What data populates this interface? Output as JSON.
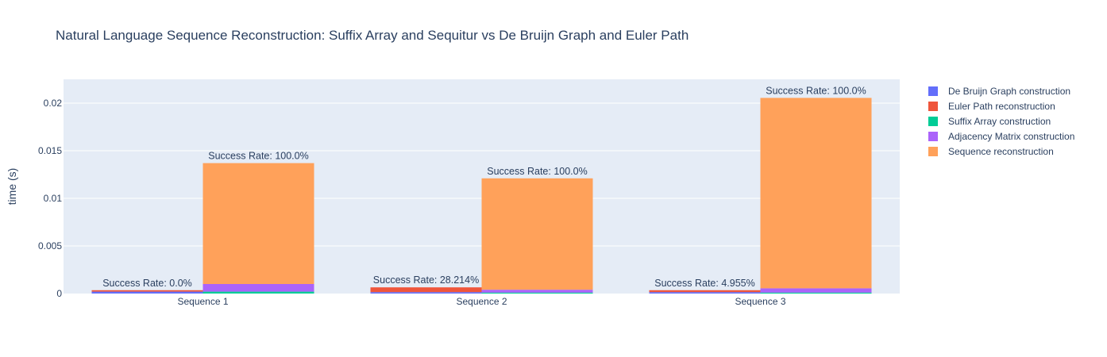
{
  "chart_data": {
    "type": "bar",
    "barmode": "stacked groups",
    "title": "Natural Language Sequence Reconstruction: Suffix Array and Sequitur vs De Bruijn Graph and Euler Path",
    "ylabel": "time (s)",
    "xlabel": "",
    "ylim": [
      0,
      0.0225
    ],
    "yticks": [
      0,
      0.005,
      0.01,
      0.015,
      0.02
    ],
    "ytick_labels": [
      "0",
      "0.005",
      "0.01",
      "0.015",
      "0.02"
    ],
    "categories": [
      "Sequence 1",
      "Sequence 2",
      "Sequence 3"
    ],
    "grid": true,
    "legend_position": "right",
    "series": [
      {
        "name": "De Bruijn Graph construction",
        "color": "#636efa",
        "stack": "debruijn",
        "values": [
          0.0002,
          0.00015,
          0.00015
        ]
      },
      {
        "name": "Euler Path reconstruction",
        "color": "#ef553b",
        "stack": "debruijn",
        "values": [
          0.00015,
          0.0005,
          0.0002
        ]
      },
      {
        "name": "Suffix Array construction",
        "color": "#00cc96",
        "stack": "suffix",
        "values": [
          0.0002,
          0.0001,
          0.0001
        ]
      },
      {
        "name": "Adjacency Matrix construction",
        "color": "#ab63fa",
        "stack": "suffix",
        "values": [
          0.0008,
          0.0003,
          0.00045
        ]
      },
      {
        "name": "Sequence reconstruction",
        "color": "#ffa15a",
        "stack": "suffix",
        "values": [
          0.0127,
          0.0117,
          0.02
        ]
      }
    ],
    "annotations": {
      "debruijn": [
        "Success Rate: 0.0%",
        "Success Rate: 28.214%",
        "Success Rate: 4.955%"
      ],
      "suffix": [
        "Success Rate: 100.0%",
        "Success Rate: 100.0%",
        "Success Rate: 100.0%"
      ]
    }
  }
}
